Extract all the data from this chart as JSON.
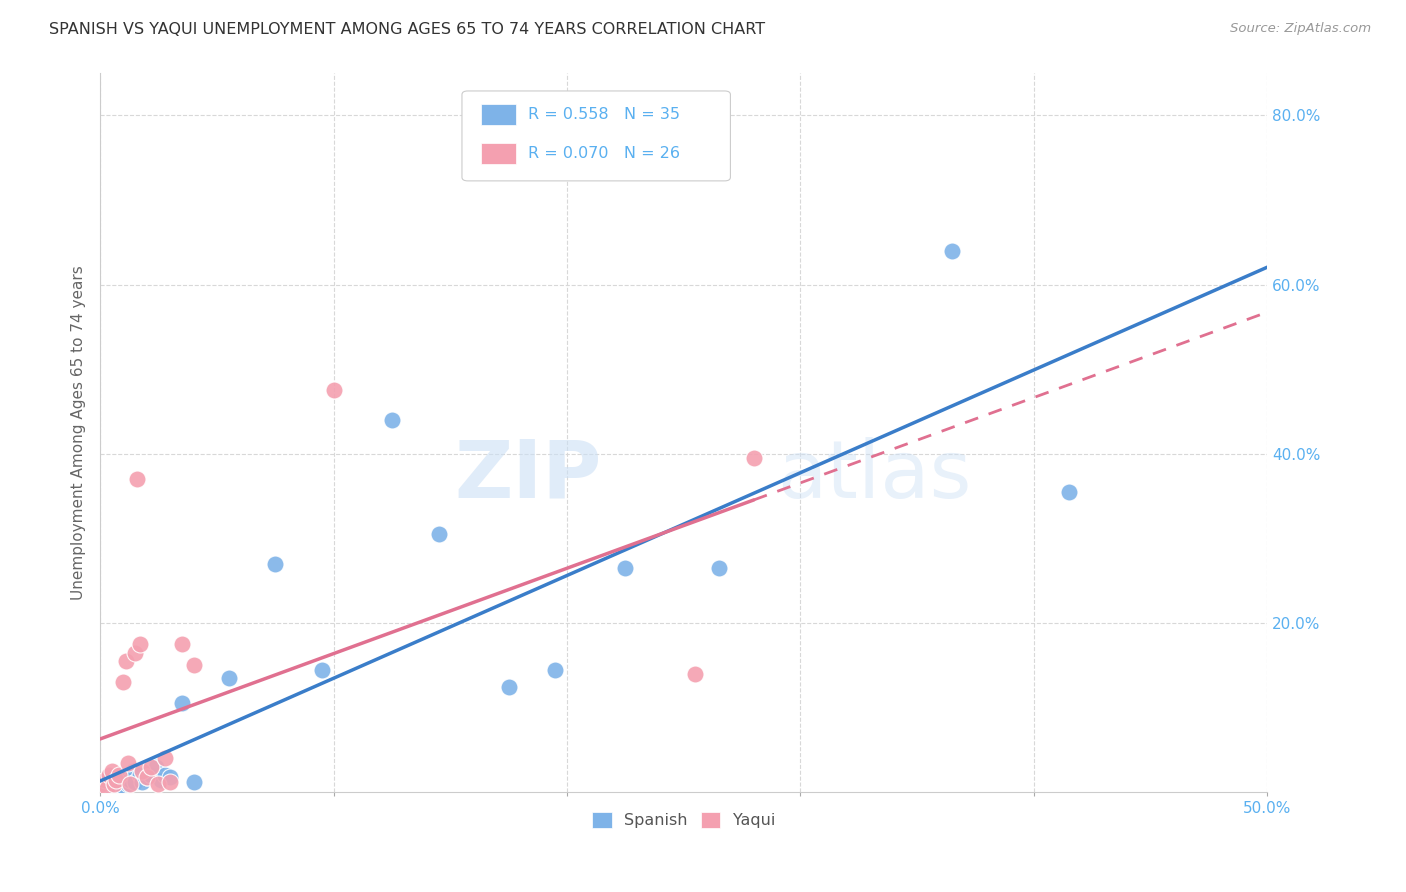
{
  "title": "SPANISH VS YAQUI UNEMPLOYMENT AMONG AGES 65 TO 74 YEARS CORRELATION CHART",
  "source": "Source: ZipAtlas.com",
  "xlabel": "",
  "ylabel": "Unemployment Among Ages 65 to 74 years",
  "xlim": [
    0.0,
    0.5
  ],
  "ylim": [
    0.0,
    0.85
  ],
  "xticks": [
    0.0,
    0.1,
    0.2,
    0.3,
    0.4,
    0.5
  ],
  "xticklabels": [
    "0.0%",
    "",
    "",
    "",
    "",
    "50.0%"
  ],
  "yticks": [
    0.2,
    0.4,
    0.6,
    0.8
  ],
  "yticklabels": [
    "20.0%",
    "40.0%",
    "60.0%",
    "80.0%"
  ],
  "spanish_color": "#7eb3e8",
  "yaqui_color": "#f4a0b0",
  "spanish_line_color": "#3a7dc9",
  "yaqui_line_color": "#e07090",
  "spanish_R": 0.558,
  "spanish_N": 35,
  "yaqui_R": 0.07,
  "yaqui_N": 26,
  "spanish_scatter_x": [
    0.001,
    0.003,
    0.004,
    0.005,
    0.006,
    0.007,
    0.008,
    0.009,
    0.01,
    0.011,
    0.012,
    0.013,
    0.014,
    0.015,
    0.017,
    0.018,
    0.02,
    0.022,
    0.024,
    0.026,
    0.028,
    0.03,
    0.035,
    0.04,
    0.055,
    0.075,
    0.095,
    0.125,
    0.145,
    0.175,
    0.195,
    0.225,
    0.265,
    0.365,
    0.415
  ],
  "spanish_scatter_y": [
    0.005,
    0.01,
    0.005,
    0.01,
    0.008,
    0.012,
    0.005,
    0.015,
    0.008,
    0.018,
    0.01,
    0.015,
    0.025,
    0.012,
    0.02,
    0.012,
    0.018,
    0.02,
    0.03,
    0.015,
    0.02,
    0.018,
    0.105,
    0.012,
    0.135,
    0.27,
    0.145,
    0.44,
    0.305,
    0.125,
    0.145,
    0.265,
    0.265,
    0.64,
    0.355
  ],
  "yaqui_scatter_x": [
    0.001,
    0.002,
    0.003,
    0.004,
    0.005,
    0.006,
    0.007,
    0.008,
    0.01,
    0.011,
    0.012,
    0.013,
    0.015,
    0.016,
    0.017,
    0.018,
    0.02,
    0.022,
    0.025,
    0.028,
    0.03,
    0.035,
    0.04,
    0.1,
    0.255,
    0.28
  ],
  "yaqui_scatter_y": [
    0.01,
    0.015,
    0.005,
    0.02,
    0.025,
    0.01,
    0.015,
    0.02,
    0.13,
    0.155,
    0.035,
    0.01,
    0.165,
    0.37,
    0.175,
    0.025,
    0.018,
    0.03,
    0.01,
    0.04,
    0.012,
    0.175,
    0.15,
    0.475,
    0.14,
    0.395
  ],
  "watermark_zip": "ZIP",
  "watermark_atlas": "atlas",
  "background_color": "#ffffff",
  "grid_color": "#d8d8d8"
}
